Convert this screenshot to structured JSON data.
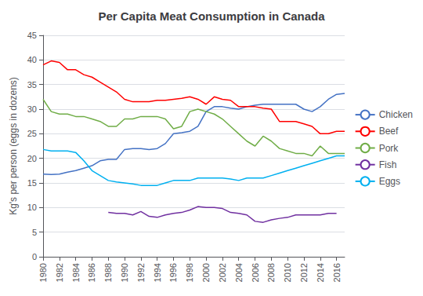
{
  "chart_data": {
    "type": "line",
    "title": "Per Capita Meat Consumption in Canada",
    "ylabel": "Kg's per person (eggs in dozens)",
    "x": [
      1980,
      1981,
      1982,
      1983,
      1984,
      1985,
      1986,
      1987,
      1988,
      1989,
      1990,
      1991,
      1992,
      1993,
      1994,
      1995,
      1996,
      1997,
      1998,
      1999,
      2000,
      2001,
      2002,
      2003,
      2004,
      2005,
      2006,
      2007,
      2008,
      2009,
      2010,
      2011,
      2012,
      2013,
      2014,
      2015,
      2016,
      2017
    ],
    "xlim": [
      1980,
      2017
    ],
    "xticks": [
      1980,
      1982,
      1984,
      1986,
      1988,
      1990,
      1992,
      1994,
      1996,
      1998,
      2000,
      2002,
      2004,
      2006,
      2008,
      2010,
      2012,
      2014,
      2016
    ],
    "ylim": [
      0,
      45
    ],
    "yticks": [
      0,
      5,
      10,
      15,
      20,
      25,
      30,
      35,
      40,
      45
    ],
    "grid": true,
    "legend": "right",
    "series": [
      {
        "name": "Chicken",
        "color": "#4472C4",
        "values": [
          16.8,
          16.7,
          16.8,
          17.2,
          17.5,
          18.0,
          18.5,
          19.5,
          19.8,
          19.8,
          21.8,
          22.0,
          22.0,
          21.8,
          22.0,
          23.0,
          25.0,
          25.2,
          25.5,
          26.5,
          29.5,
          30.5,
          30.5,
          30.2,
          30.0,
          30.5,
          30.8,
          31.0,
          31.0,
          31.0,
          31.0,
          31.0,
          30.0,
          29.5,
          30.5,
          32.0,
          33.0,
          33.2
        ]
      },
      {
        "name": "Beef",
        "color": "#FF0000",
        "values": [
          39.0,
          39.8,
          39.5,
          38.0,
          38.0,
          37.0,
          36.5,
          35.5,
          34.5,
          33.5,
          32.0,
          31.5,
          31.5,
          31.5,
          31.8,
          31.8,
          32.0,
          32.2,
          32.5,
          32.0,
          31.0,
          32.5,
          32.0,
          31.8,
          30.5,
          30.5,
          30.5,
          30.2,
          30.0,
          27.5,
          27.5,
          27.5,
          27.0,
          26.5,
          25.0,
          25.0,
          25.5,
          25.5
        ]
      },
      {
        "name": "Pork",
        "color": "#70AD47",
        "values": [
          32.0,
          29.5,
          29.0,
          29.0,
          28.5,
          28.5,
          28.0,
          27.5,
          26.5,
          26.5,
          28.0,
          28.0,
          28.5,
          28.5,
          28.5,
          28.0,
          26.0,
          26.5,
          29.5,
          30.0,
          29.5,
          29.0,
          28.0,
          26.5,
          25.0,
          23.5,
          22.5,
          24.5,
          23.5,
          22.0,
          21.5,
          21.0,
          21.0,
          20.5,
          22.5,
          21.0,
          21.0,
          21.0
        ]
      },
      {
        "name": "Fish",
        "color": "#7030A0",
        "values": [
          null,
          null,
          null,
          null,
          null,
          null,
          null,
          null,
          9.0,
          8.8,
          8.8,
          8.5,
          9.2,
          8.2,
          8.0,
          8.5,
          8.8,
          9.0,
          9.5,
          10.2,
          10.0,
          10.0,
          9.8,
          9.0,
          8.8,
          8.5,
          7.2,
          7.0,
          7.5,
          7.8,
          8.0,
          8.5,
          8.5,
          8.5,
          8.5,
          8.8,
          8.8,
          null
        ]
      },
      {
        "name": "Eggs",
        "color": "#00B0F0",
        "values": [
          21.8,
          21.5,
          21.5,
          21.5,
          21.2,
          19.5,
          17.5,
          16.5,
          15.5,
          15.2,
          15.0,
          14.8,
          14.5,
          14.5,
          14.5,
          15.0,
          15.5,
          15.5,
          15.5,
          16.0,
          16.0,
          16.0,
          16.0,
          15.8,
          15.5,
          16.0,
          16.0,
          16.0,
          16.5,
          17.0,
          17.5,
          18.0,
          18.5,
          19.0,
          19.5,
          20.0,
          20.5,
          20.5
        ]
      }
    ]
  }
}
